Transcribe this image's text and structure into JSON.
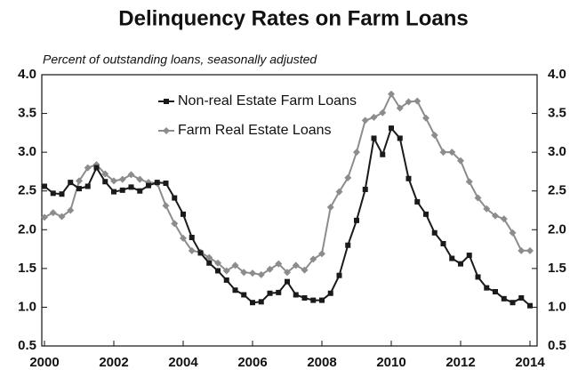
{
  "chart_data": {
    "type": "line",
    "title": "Delinquency Rates on Farm Loans",
    "subtitle": "Percent of outstanding loans, seasonally adjusted",
    "x": [
      2000,
      2000.25,
      2000.5,
      2000.75,
      2001,
      2001.25,
      2001.5,
      2001.75,
      2002,
      2002.25,
      2002.5,
      2002.75,
      2003,
      2003.25,
      2003.5,
      2003.75,
      2004,
      2004.25,
      2004.5,
      2004.75,
      2005,
      2005.25,
      2005.5,
      2005.75,
      2006,
      2006.25,
      2006.5,
      2006.75,
      2007,
      2007.25,
      2007.5,
      2007.75,
      2008,
      2008.25,
      2008.5,
      2008.75,
      2009,
      2009.25,
      2009.5,
      2009.75,
      2010,
      2010.25,
      2010.5,
      2010.75,
      2011,
      2011.25,
      2011.5,
      2011.75,
      2012,
      2012.25,
      2012.5,
      2012.75,
      2013,
      2013.25,
      2013.5,
      2013.75,
      2014
    ],
    "series": [
      {
        "name": "Non-real Estate Farm Loans",
        "color": "#1a1a1a",
        "marker": "square",
        "values": [
          2.56,
          2.47,
          2.46,
          2.61,
          2.53,
          2.56,
          2.8,
          2.62,
          2.49,
          2.51,
          2.55,
          2.5,
          2.57,
          2.61,
          2.6,
          2.41,
          2.2,
          1.9,
          1.7,
          1.57,
          1.47,
          1.35,
          1.22,
          1.16,
          1.06,
          1.07,
          1.18,
          1.19,
          1.33,
          1.16,
          1.12,
          1.09,
          1.09,
          1.18,
          1.41,
          1.8,
          2.12,
          2.52,
          3.18,
          2.97,
          3.31,
          3.18,
          2.66,
          2.36,
          2.2,
          1.96,
          1.82,
          1.63,
          1.56,
          1.67,
          1.39,
          1.25,
          1.2,
          1.11,
          1.06,
          1.12,
          1.02
        ]
      },
      {
        "name": "Farm Real Estate Loans",
        "color": "#8c8c8c",
        "marker": "diamond",
        "values": [
          2.16,
          2.22,
          2.17,
          2.25,
          2.63,
          2.8,
          2.84,
          2.72,
          2.63,
          2.65,
          2.71,
          2.65,
          2.61,
          2.6,
          2.31,
          2.08,
          1.89,
          1.73,
          1.71,
          1.64,
          1.57,
          1.47,
          1.54,
          1.45,
          1.44,
          1.42,
          1.49,
          1.56,
          1.45,
          1.54,
          1.48,
          1.62,
          1.69,
          2.29,
          2.49,
          2.67,
          3.0,
          3.41,
          3.45,
          3.51,
          3.75,
          3.57,
          3.65,
          3.66,
          3.44,
          3.22,
          3.0,
          3.0,
          2.89,
          2.62,
          2.41,
          2.27,
          2.18,
          2.14,
          1.96,
          1.73,
          1.73
        ]
      }
    ],
    "xlim": [
      2000,
      2014
    ],
    "xticks": [
      2000,
      2002,
      2004,
      2006,
      2008,
      2010,
      2012,
      2014
    ],
    "ylim": [
      0.5,
      4
    ],
    "yticks": [
      {
        "value": 0.5,
        "label": "0.5"
      },
      {
        "value": 1,
        "label": "1.0"
      },
      {
        "value": 1.5,
        "label": "1.5"
      },
      {
        "value": 2,
        "label": "2.0"
      },
      {
        "value": 2.5,
        "label": "2.5"
      },
      {
        "value": 3,
        "label": "3.0"
      },
      {
        "value": 3.5,
        "label": "3.5"
      },
      {
        "value": 4,
        "label": "4.0"
      }
    ],
    "y2lim": [
      0.5,
      4
    ],
    "y2ticks": [
      {
        "value": 0.5,
        "label": "0.5"
      },
      {
        "value": 1,
        "label": "1.0"
      },
      {
        "value": 1.5,
        "label": "1.5"
      },
      {
        "value": 2,
        "label": "2.0"
      },
      {
        "value": 2.5,
        "label": "2.5"
      },
      {
        "value": 3,
        "label": "3.0"
      },
      {
        "value": 3.5,
        "label": "3.5"
      },
      {
        "value": 4,
        "label": "4.0"
      }
    ],
    "grid": false,
    "legend": "top"
  }
}
